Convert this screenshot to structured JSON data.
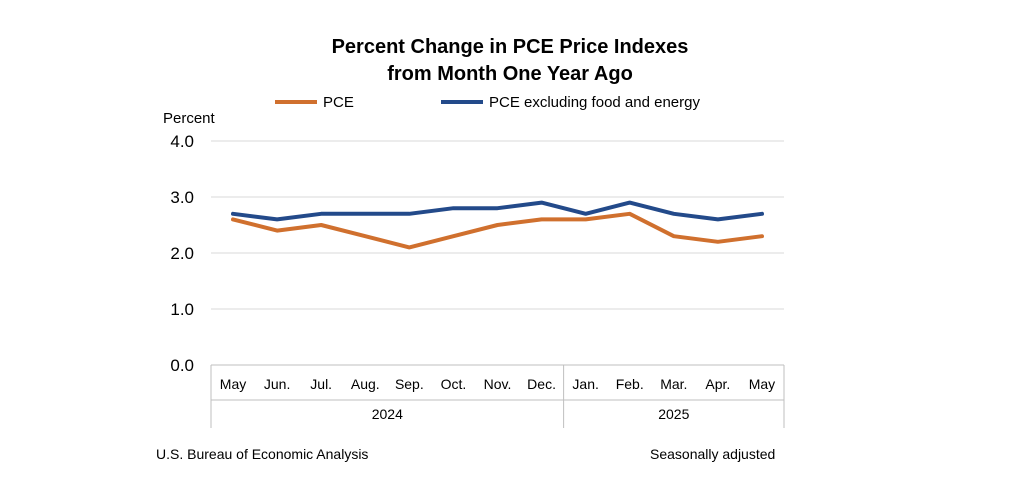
{
  "chart_data": {
    "type": "line",
    "title_lines": [
      "Percent Change in PCE Price Indexes",
      "from Month One Year Ago"
    ],
    "ylabel": "Percent",
    "ylim": [
      0,
      4
    ],
    "yticks": [
      "0.0",
      "1.0",
      "2.0",
      "3.0",
      "4.0"
    ],
    "ytick_values": [
      0,
      1,
      2,
      3,
      4
    ],
    "grid": true,
    "legend_position": "top",
    "categories": [
      "May",
      "Jun.",
      "Jul.",
      "Aug.",
      "Sep.",
      "Oct.",
      "Nov.",
      "Dec.",
      "Jan.",
      "Feb.",
      "Mar.",
      "Apr.",
      "May"
    ],
    "year_groups": [
      {
        "label": "2024",
        "count": 8
      },
      {
        "label": "2025",
        "count": 5
      }
    ],
    "series": [
      {
        "name": "PCE",
        "color": "#D0702E",
        "values": [
          2.6,
          2.4,
          2.5,
          2.3,
          2.1,
          2.3,
          2.5,
          2.6,
          2.6,
          2.7,
          2.3,
          2.2,
          2.3
        ]
      },
      {
        "name": "PCE excluding food and energy",
        "color": "#234A8A",
        "values": [
          2.7,
          2.6,
          2.7,
          2.7,
          2.7,
          2.8,
          2.8,
          2.9,
          2.7,
          2.9,
          2.7,
          2.6,
          2.7
        ]
      }
    ]
  },
  "footer": {
    "source": "U.S. Bureau of Economic Analysis",
    "note": "Seasonally adjusted"
  }
}
